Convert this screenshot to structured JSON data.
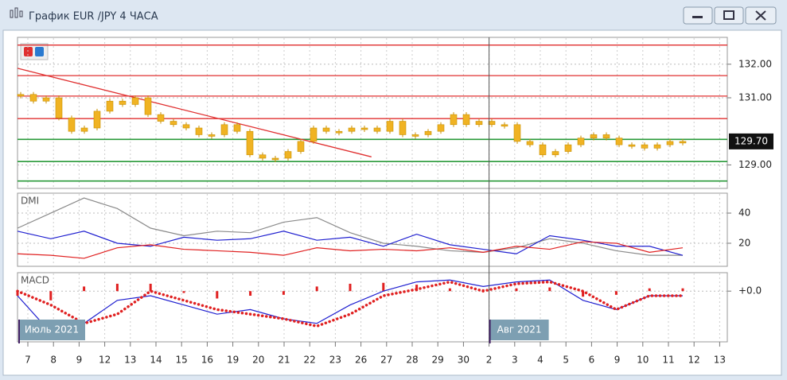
{
  "window": {
    "title": "График EUR /JPY  4 ЧАСА"
  },
  "x_axis": {
    "categories": [
      "7",
      "8",
      "9",
      "12",
      "13",
      "14",
      "15",
      "16",
      "19",
      "20",
      "21",
      "22",
      "23",
      "26",
      "27",
      "28",
      "29",
      "30",
      "2",
      "3",
      "4",
      "5",
      "6",
      "9",
      "10",
      "11",
      "12",
      "13"
    ]
  },
  "annotations": [
    {
      "text": "Июль 2021",
      "category": 0
    },
    {
      "text": "Авг 2021",
      "category": 18
    }
  ],
  "chart_data": [
    {
      "type": "candlestick",
      "color": "#f0b323",
      "grid": true,
      "values": [
        131.1,
        130.9,
        131.0,
        130.4,
        130.0,
        130.1,
        130.6,
        130.9,
        130.8,
        131.0,
        130.5,
        130.3,
        130.2,
        130.1,
        129.9,
        129.9,
        130.2,
        130.0,
        129.3,
        129.2,
        129.2,
        129.4,
        129.7,
        130.1,
        130.0,
        130.0,
        130.1,
        130.1,
        130.0,
        130.3,
        129.9,
        129.9,
        130.0,
        130.2,
        130.5,
        130.2,
        130.3,
        130.2,
        130.2,
        129.7,
        129.6,
        129.3,
        129.4,
        129.6,
        129.8,
        129.9,
        129.8,
        129.6,
        129.6,
        129.5,
        129.6,
        129.7,
        129.7
      ],
      "ylim": [
        128.3,
        132.8
      ],
      "yticks": [
        {
          "value": 132,
          "label": "132.00"
        },
        {
          "value": 131,
          "label": "131.00"
        },
        {
          "value": 129,
          "label": "129.00"
        }
      ],
      "current": {
        "value": 129.7,
        "label": "129.70"
      },
      "red_levels": [
        132.57,
        131.66,
        131.05,
        130.38
      ],
      "green_levels": [
        129.76,
        129.1,
        128.52
      ],
      "trendline": {
        "from": [
          0,
          131.88
        ],
        "to": [
          27.8,
          129.24
        ],
        "color": "#e03030"
      }
    },
    {
      "type": "line",
      "title": "DMI",
      "grid": true,
      "ylim": [
        4.7,
        53.2
      ],
      "yticks": [
        40,
        20
      ],
      "series": [
        {
          "color": "#8a8a8a",
          "values": [
            30,
            40,
            50,
            43,
            30,
            25,
            28,
            27,
            34,
            37,
            27,
            20,
            18,
            15,
            14,
            17,
            23,
            20,
            15,
            12,
            12
          ]
        },
        {
          "color": "#2020d0",
          "values": [
            28,
            23,
            28,
            20,
            18,
            24,
            22,
            23,
            28,
            22,
            24,
            18,
            26,
            19,
            16,
            13,
            25,
            22,
            18,
            18,
            12
          ]
        },
        {
          "color": "#e02020",
          "values": [
            13,
            12,
            10,
            17,
            19,
            16,
            15,
            14,
            12,
            17,
            15,
            16,
            15,
            17,
            14,
            18,
            16,
            21,
            20,
            14,
            17
          ]
        }
      ]
    },
    {
      "type": "macd",
      "title": "MACD",
      "grid": true,
      "ylim": [
        -0.55,
        0.2
      ],
      "yticks": [
        {
          "value": 0,
          "label": "+0.0"
        }
      ],
      "series": [
        {
          "style": "bar",
          "color": "#e02020",
          "values": [
            -0.05,
            -0.1,
            0.05,
            0.08,
            0.08,
            -0.02,
            -0.08,
            -0.05,
            -0.04,
            0.05,
            0.08,
            0.09,
            0.07,
            0.03,
            0.02,
            0.03,
            0.04,
            -0.06,
            -0.04,
            0.03,
            0.03
          ]
        },
        {
          "style": "line",
          "color": "#2020d0",
          "values": [
            -0.05,
            -0.45,
            -0.35,
            -0.1,
            -0.05,
            -0.15,
            -0.25,
            -0.2,
            -0.3,
            -0.35,
            -0.15,
            0.0,
            0.1,
            0.12,
            0.05,
            0.1,
            0.12,
            -0.1,
            -0.2,
            -0.05,
            -0.05
          ]
        },
        {
          "style": "dots",
          "color": "#e02020",
          "values": [
            0,
            -0.15,
            -0.35,
            -0.25,
            0,
            -0.1,
            -0.2,
            -0.25,
            -0.3,
            -0.38,
            -0.25,
            -0.05,
            0.02,
            0.1,
            0,
            0.08,
            0.1,
            0.0,
            -0.2,
            -0.05,
            -0.05
          ]
        }
      ]
    }
  ]
}
